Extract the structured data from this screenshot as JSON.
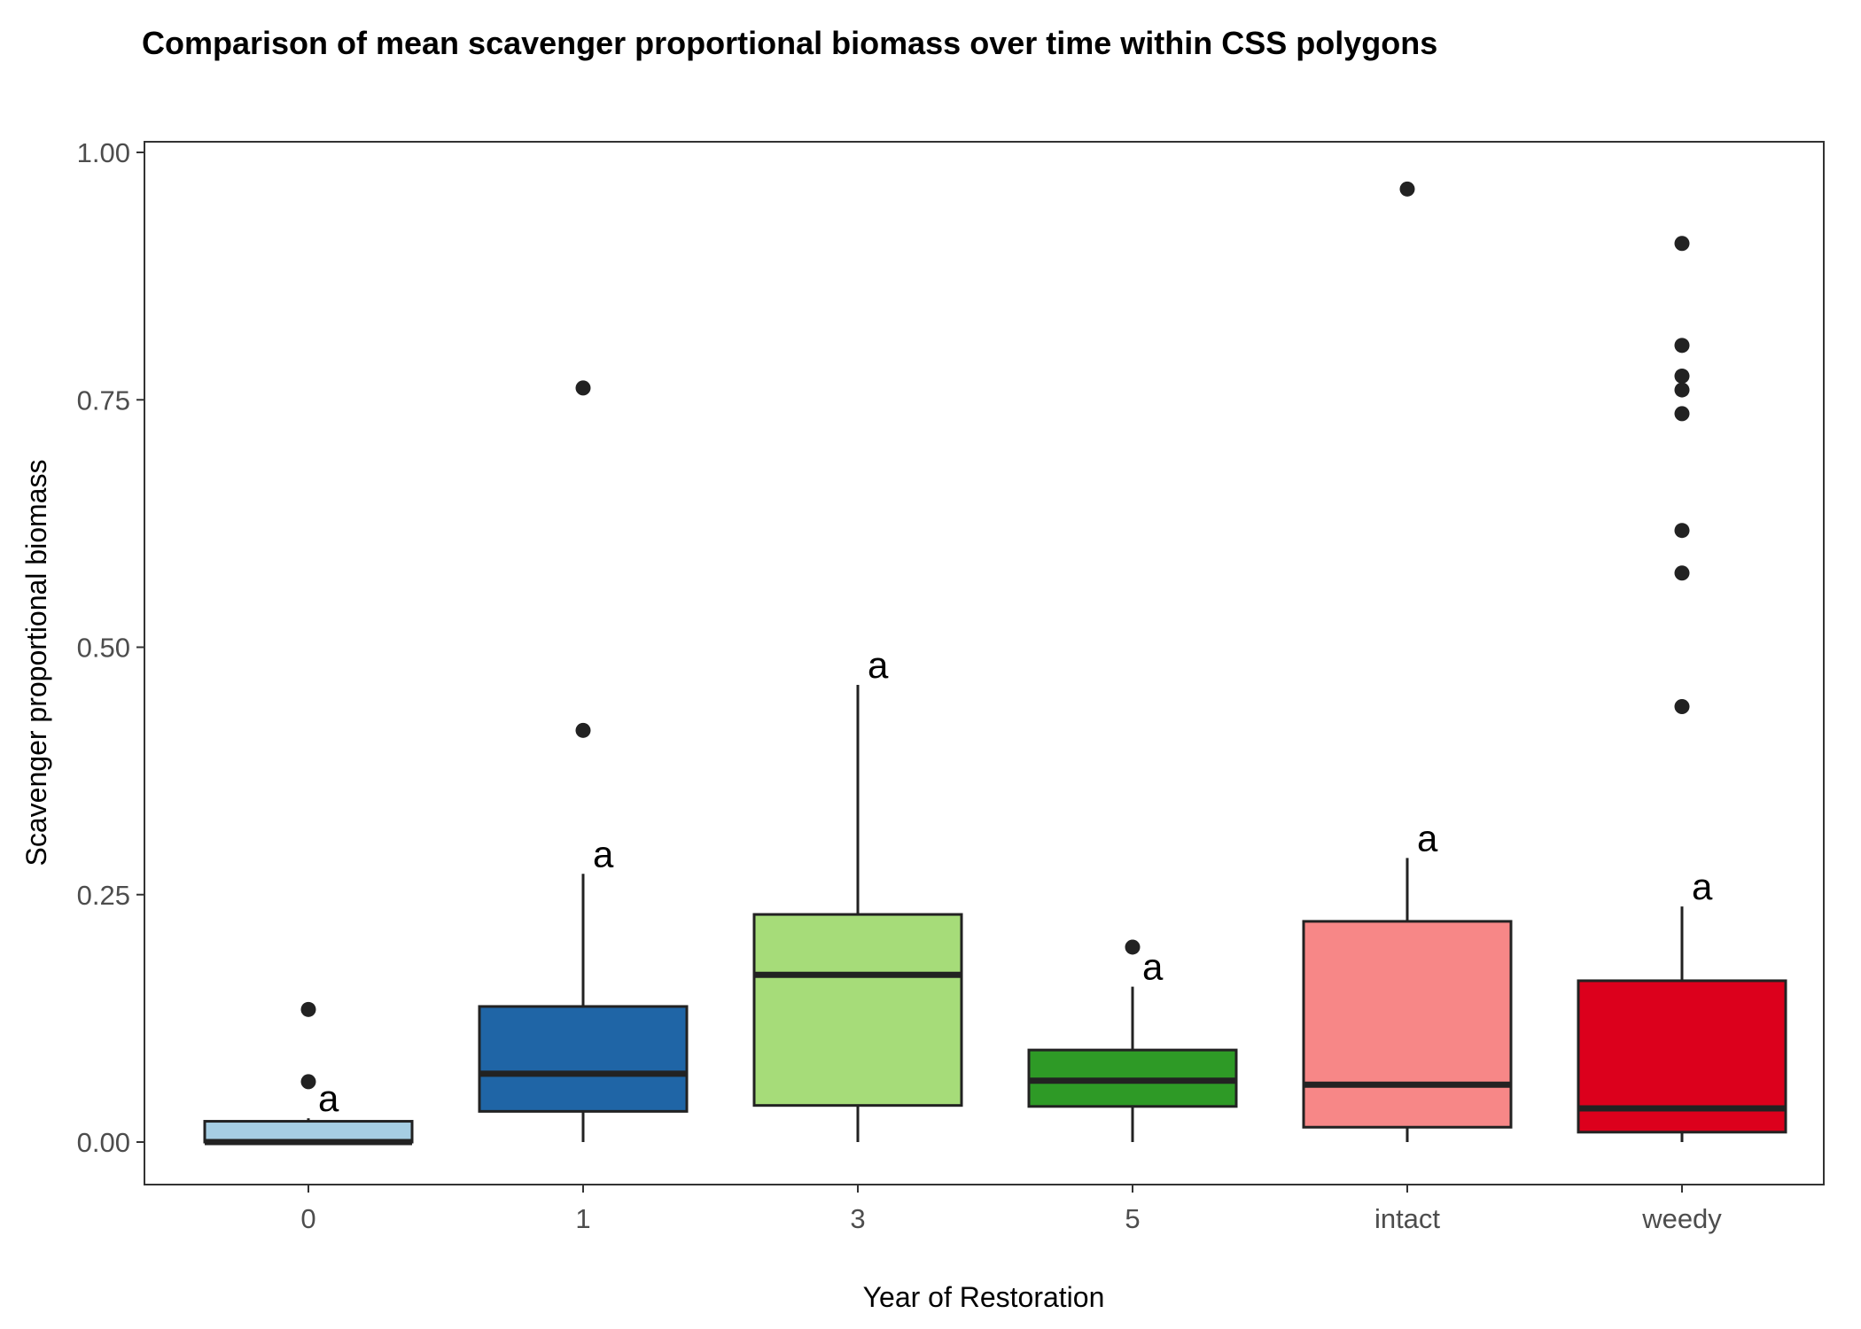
{
  "chart_data": {
    "type": "box",
    "title": "Comparison of mean scavenger proportional biomass over time within CSS polygons",
    "xlabel": "Year of Restoration",
    "ylabel": "Scavenger proportional biomass",
    "ylim": [
      -0.046,
      1.015
    ],
    "yticks": [
      "0.00",
      "0.25",
      "0.50",
      "0.75",
      "1.00"
    ],
    "ytick_values": [
      0,
      0.25,
      0.5,
      0.75,
      1.0
    ],
    "grid": false,
    "legend": "none",
    "categories": [
      "0",
      "1",
      "3",
      "5",
      "intact",
      "weedy"
    ],
    "boxes": [
      {
        "category": "0",
        "color": "#a6cee3",
        "q1": 0.0,
        "median": 0.0,
        "q3": 0.021,
        "whisker_low": 0.0,
        "whisker_high": 0.024,
        "outliers": [
          0.061,
          0.134
        ],
        "label": "a"
      },
      {
        "category": "1",
        "color": "#1f65a6",
        "q1": 0.031,
        "median": 0.069,
        "q3": 0.137,
        "whisker_low": 0.0,
        "whisker_high": 0.271,
        "outliers": [
          0.416,
          0.762
        ],
        "label": "a"
      },
      {
        "category": "3",
        "color": "#a6dc79",
        "q1": 0.037,
        "median": 0.169,
        "q3": 0.23,
        "whisker_low": 0.0,
        "whisker_high": 0.462,
        "outliers": [],
        "label": "a"
      },
      {
        "category": "5",
        "color": "#2e9a26",
        "q1": 0.036,
        "median": 0.062,
        "q3": 0.093,
        "whisker_low": 0.0,
        "whisker_high": 0.157,
        "outliers": [
          0.197
        ],
        "label": "a"
      },
      {
        "category": "intact",
        "color": "#f78787",
        "q1": 0.015,
        "median": 0.058,
        "q3": 0.223,
        "whisker_low": 0.0,
        "whisker_high": 0.287,
        "outliers": [
          0.963
        ],
        "label": "a"
      },
      {
        "category": "weedy",
        "color": "#dc001c",
        "q1": 0.01,
        "median": 0.034,
        "q3": 0.163,
        "whisker_low": 0.0,
        "whisker_high": 0.238,
        "outliers": [
          0.44,
          0.575,
          0.618,
          0.736,
          0.76,
          0.774,
          0.805,
          0.908
        ],
        "label": "a"
      }
    ]
  }
}
